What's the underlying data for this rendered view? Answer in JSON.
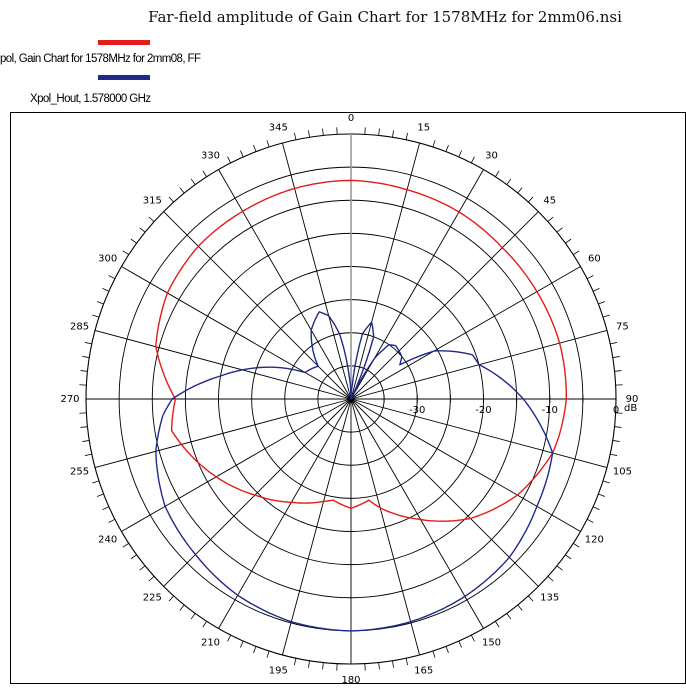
{
  "title": "Far-field amplitude of Gain Chart for 1578MHz for 2mm06.nsi",
  "legend": [
    {
      "label": "pol, Gain Chart for 1578MHz for 2mm08, FF",
      "color": "#e31b1b"
    },
    {
      "label": "Xpol_Hout, 1.578000 GHz",
      "color": "#1f2a8a"
    }
  ],
  "chart_data": {
    "type": "polar-line",
    "title": "Far-field amplitude of Gain Chart for 1578MHz for 2mm06.nsi",
    "angle_unit": "deg",
    "angle_ticks": [
      "0",
      "15",
      "30",
      "45",
      "60",
      "75",
      "90",
      "105",
      "120",
      "135",
      "150",
      "165",
      "180",
      "195",
      "210",
      "225",
      "240",
      "255",
      "270",
      "285",
      "300",
      "315",
      "330",
      "345"
    ],
    "radial_unit": "dB",
    "radial_ticks": [
      "-30",
      "-20",
      "-10",
      "0"
    ],
    "rlim": [
      -40,
      0
    ],
    "series": [
      {
        "name": "pol, Gain Chart for 1578MHz for 2mm08, FF",
        "color": "#e31b1b",
        "angles": [
          0,
          15,
          30,
          45,
          60,
          75,
          90,
          100,
          105,
          120,
          135,
          150,
          165,
          170,
          180,
          190,
          195,
          210,
          225,
          240,
          255,
          260,
          270,
          285,
          300,
          315,
          330,
          345
        ],
        "values": [
          -7.0,
          -7.3,
          -7.4,
          -7.7,
          -7.6,
          -7.4,
          -7.5,
          -8.1,
          -8.5,
          -11.0,
          -14.5,
          -19.0,
          -23.0,
          -24.5,
          -23.5,
          -24.5,
          -24.0,
          -22.0,
          -19.5,
          -16.5,
          -13.5,
          -12.5,
          -13.5,
          -9.5,
          -8.0,
          -7.4,
          -7.3,
          -7.1
        ]
      },
      {
        "name": "Xpol_Hout, 1.578000 GHz",
        "color": "#1f2a8a",
        "angles": [
          0,
          5,
          10,
          15,
          20,
          25,
          30,
          35,
          40,
          50,
          55,
          60,
          65,
          70,
          75,
          80,
          90,
          105,
          120,
          135,
          150,
          165,
          180,
          195,
          210,
          225,
          240,
          255,
          265,
          270,
          280,
          290,
          300,
          315,
          330,
          340,
          345,
          350,
          355,
          360
        ],
        "values": [
          -40,
          -38,
          -30,
          -28,
          -30,
          -40,
          -33,
          -30,
          -29.5,
          -30,
          -31,
          -25.5,
          -23,
          -20.5,
          -20,
          -18,
          -14,
          -8.5,
          -7.6,
          -6.2,
          -5.6,
          -5.2,
          -5.0,
          -5.2,
          -5.8,
          -6.8,
          -7.6,
          -9.5,
          -11.5,
          -13,
          -20,
          -26,
          -32,
          -33,
          -28,
          -26,
          -27,
          -30,
          -36,
          -40
        ]
      }
    ],
    "grid": true
  }
}
